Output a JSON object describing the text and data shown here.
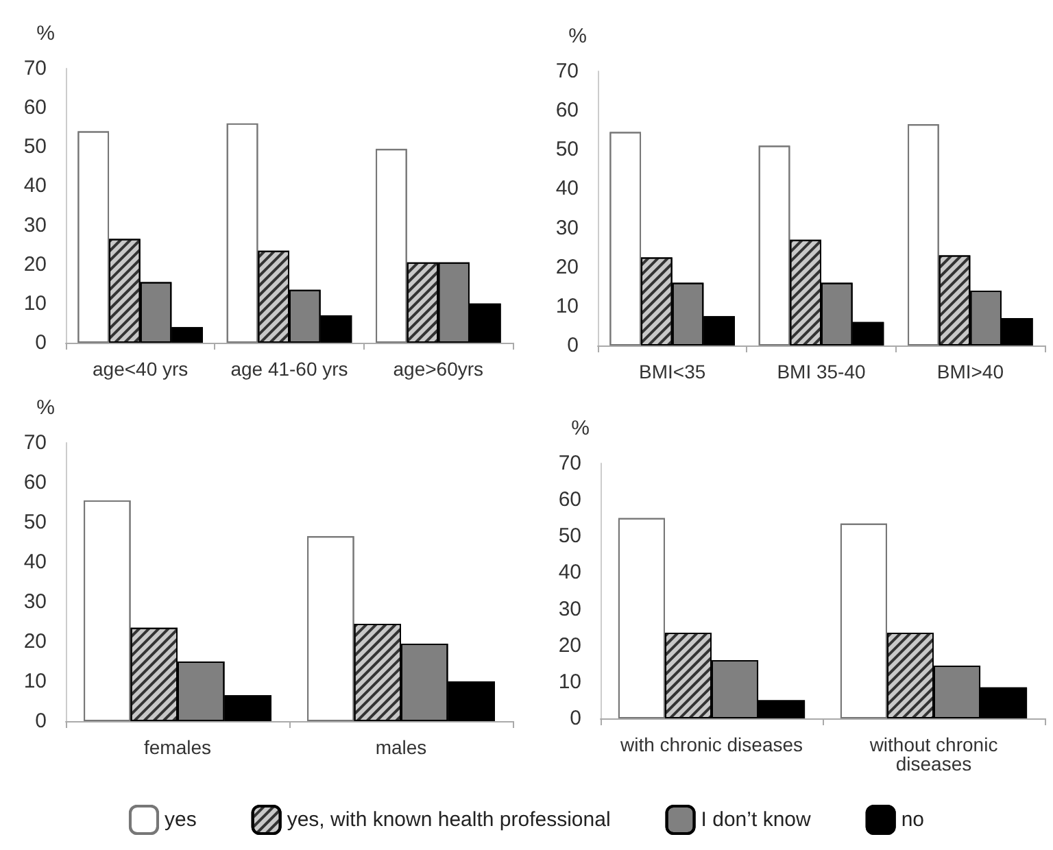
{
  "chart_data": [
    {
      "type": "bar",
      "ylabel": "%",
      "categories": [
        "age<40 yrs",
        "age 41-60 yrs",
        "age>60yrs"
      ],
      "ylim": [
        0,
        70
      ],
      "yticks": [
        0,
        10,
        20,
        30,
        40,
        50,
        60,
        70
      ],
      "grid": false,
      "series": [
        {
          "color": "#ffffff",
          "values": [
            54,
            56,
            49.5
          ]
        },
        {
          "color": "#c8c8c8",
          "values": [
            26.5,
            23.5,
            20.5
          ]
        },
        {
          "color": "#808080",
          "values": [
            15.5,
            13.5,
            20.5
          ]
        },
        {
          "color": "#000000",
          "values": [
            4,
            7,
            10
          ]
        }
      ]
    },
    {
      "type": "bar",
      "ylabel": "%",
      "categories": [
        "BMI<35",
        "BMI 35-40",
        "BMI>40"
      ],
      "ylim": [
        0,
        70
      ],
      "yticks": [
        0,
        10,
        20,
        30,
        40,
        50,
        60,
        70
      ],
      "grid": false,
      "series": [
        {
          "color": "#ffffff",
          "values": [
            54.5,
            51,
            56.5
          ]
        },
        {
          "color": "#c8c8c8",
          "values": [
            22.5,
            27,
            23
          ]
        },
        {
          "color": "#808080",
          "values": [
            16,
            16,
            14
          ]
        },
        {
          "color": "#000000",
          "values": [
            7.5,
            6,
            7
          ]
        }
      ]
    },
    {
      "type": "bar",
      "ylabel": "%",
      "categories": [
        "females",
        "males"
      ],
      "ylim": [
        0,
        70
      ],
      "yticks": [
        0,
        10,
        20,
        30,
        40,
        50,
        60,
        70
      ],
      "grid": false,
      "series": [
        {
          "color": "#ffffff",
          "values": [
            55.5,
            46.5
          ]
        },
        {
          "color": "#c8c8c8",
          "values": [
            23.5,
            24.5
          ]
        },
        {
          "color": "#808080",
          "values": [
            15,
            19.5
          ]
        },
        {
          "color": "#000000",
          "values": [
            6.5,
            10
          ]
        }
      ]
    },
    {
      "type": "bar",
      "ylabel": "%",
      "categories": [
        "with chronic diseases",
        "without chronic\ndiseases"
      ],
      "ylim": [
        0,
        70
      ],
      "yticks": [
        0,
        10,
        20,
        30,
        40,
        50,
        60,
        70
      ],
      "grid": false,
      "legend": "bottom",
      "series": [
        {
          "name": "yes",
          "color": "#ffffff",
          "values": [
            55,
            53.5
          ]
        },
        {
          "name": "yes, with known health professional",
          "color": "#c8c8c8",
          "values": [
            23.5,
            23.5
          ]
        },
        {
          "name": "I don’t know",
          "color": "#808080",
          "values": [
            16,
            14.5
          ]
        },
        {
          "name": "no",
          "color": "#000000",
          "values": [
            5,
            8.5
          ]
        }
      ]
    }
  ]
}
